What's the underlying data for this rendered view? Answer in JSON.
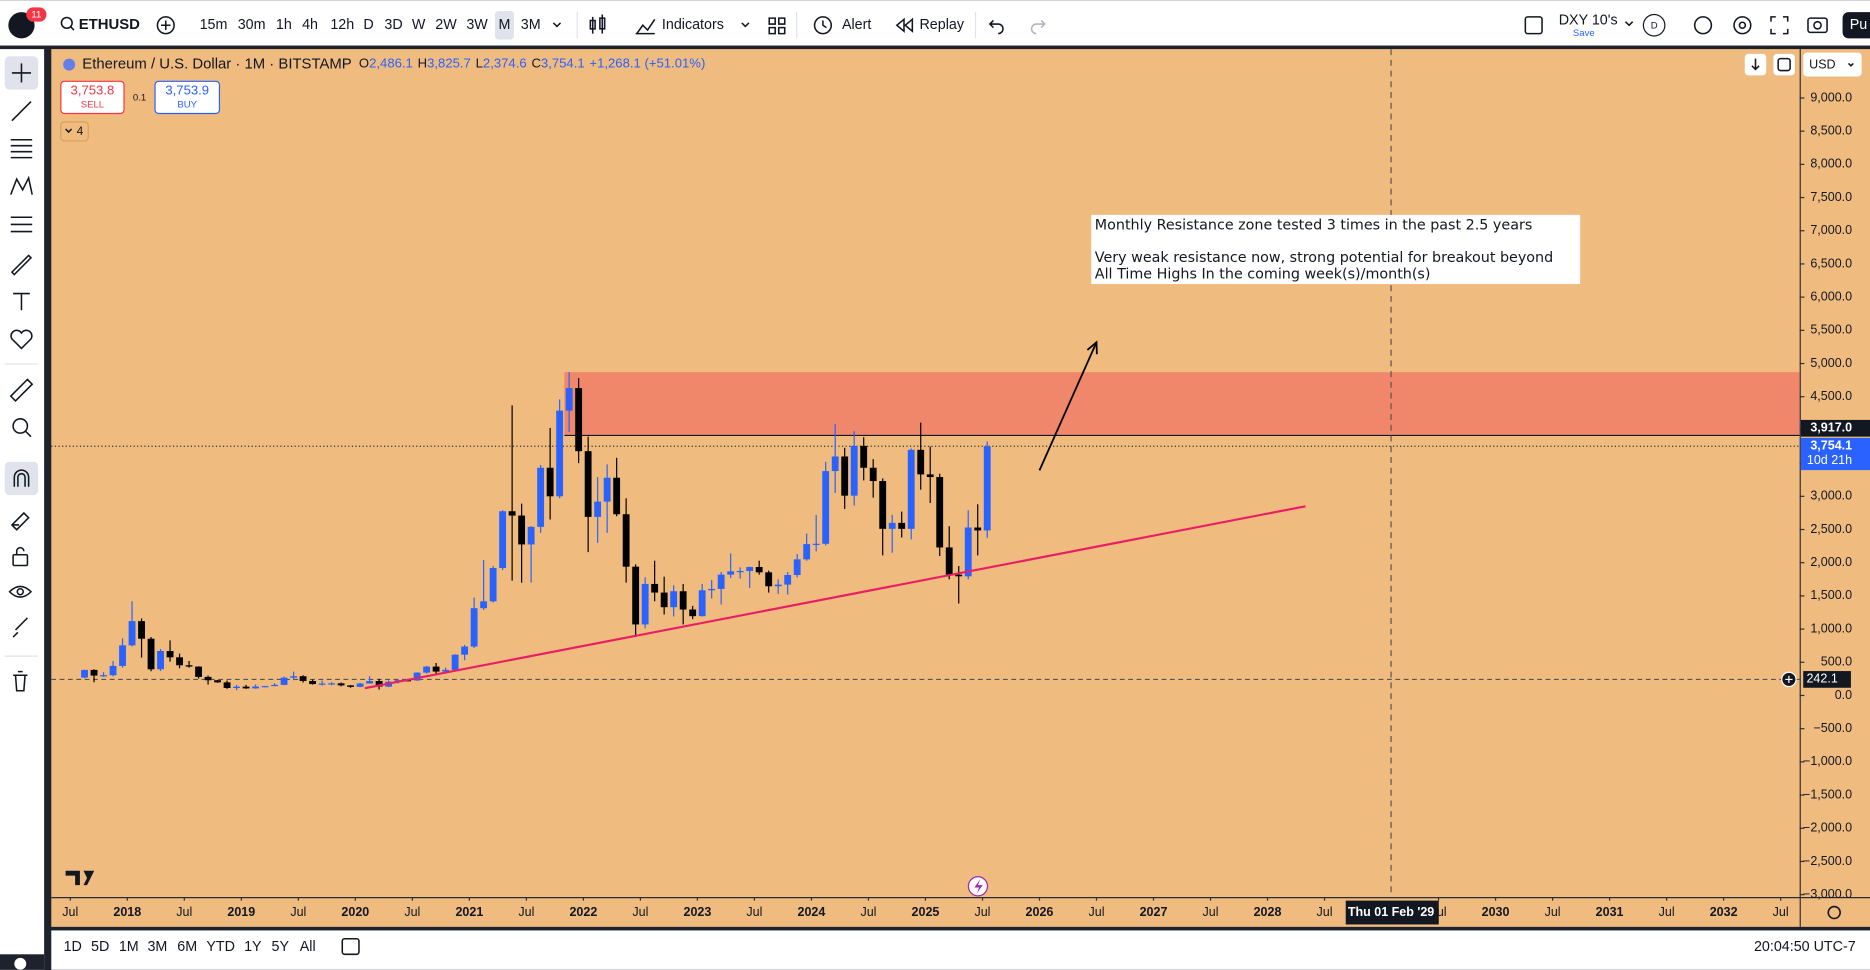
{
  "toolbar": {
    "symbol": "ETHUSD",
    "notifications": "11",
    "intervals": [
      "15m",
      "30m",
      "1h",
      "4h",
      "12h",
      "D",
      "3D",
      "W",
      "2W",
      "3W",
      "M",
      "3M"
    ],
    "active_interval": "M",
    "indicators": "Indicators",
    "alert": "Alert",
    "replay": "Replay",
    "layout_name": "DXY 10's",
    "save": "Save",
    "avatar": "D",
    "publish": "Pu"
  },
  "legend": {
    "title": "Ethereum / U.S. Dollar · 1M · BITSTAMP",
    "ohlc": [
      {
        "key": "O",
        "value": "2,486.1"
      },
      {
        "key": "H",
        "value": "3,825.7"
      },
      {
        "key": "L",
        "value": "2,374.6"
      },
      {
        "key": "C",
        "value": "3,754.1"
      }
    ],
    "change": "+1,268.1 (+51.01%)"
  },
  "trade": {
    "sell_price": "3,753.8",
    "sell": "SELL",
    "spread": "0.1",
    "buy_price": "3,753.9",
    "buy": "BUY"
  },
  "indicators_collapsed": "4",
  "annotation": [
    "Monthly Resistance zone tested 3 times in the past 2.5 years",
    "Very weak resistance now, strong potential for breakout beyond",
    "All Time Highs In the coming week(s)/month(s)"
  ],
  "chart": {
    "type": "candlestick",
    "up_color": "#2962ff",
    "down_color": "#000000",
    "background": "#efbb7f",
    "currency": "USD",
    "xlim": [
      "2017-05",
      "2032-09"
    ],
    "xticks": [
      {
        "value": "2017-07",
        "label": "Jul"
      },
      {
        "value": "2018-01",
        "label": "2018"
      },
      {
        "value": "2018-07",
        "label": "Jul"
      },
      {
        "value": "2019-01",
        "label": "2019"
      },
      {
        "value": "2019-07",
        "label": "Jul"
      },
      {
        "value": "2020-01",
        "label": "2020"
      },
      {
        "value": "2020-07",
        "label": "Jul"
      },
      {
        "value": "2021-01",
        "label": "2021"
      },
      {
        "value": "2021-07",
        "label": "Jul"
      },
      {
        "value": "2022-01",
        "label": "2022"
      },
      {
        "value": "2022-07",
        "label": "Jul"
      },
      {
        "value": "2023-01",
        "label": "2023"
      },
      {
        "value": "2023-07",
        "label": "Jul"
      },
      {
        "value": "2024-01",
        "label": "2024"
      },
      {
        "value": "2024-07",
        "label": "Jul"
      },
      {
        "value": "2025-01",
        "label": "2025"
      },
      {
        "value": "2025-07",
        "label": "Jul"
      },
      {
        "value": "2026-01",
        "label": "2026"
      },
      {
        "value": "2026-07",
        "label": "Jul"
      },
      {
        "value": "2027-01",
        "label": "2027"
      },
      {
        "value": "2027-07",
        "label": "Jul"
      },
      {
        "value": "2028-01",
        "label": "2028"
      },
      {
        "value": "2028-07",
        "label": "Jul"
      },
      {
        "value": "2029-07",
        "label": "Jul"
      },
      {
        "value": "2030-01",
        "label": "2030"
      },
      {
        "value": "2030-07",
        "label": "Jul"
      },
      {
        "value": "2031-01",
        "label": "2031"
      },
      {
        "value": "2031-07",
        "label": "Jul"
      },
      {
        "value": "2032-01",
        "label": "2032"
      },
      {
        "value": "2032-07",
        "label": "Jul"
      }
    ],
    "ylim": [
      -3036,
      9736
    ],
    "yticks": [
      {
        "value": 9000,
        "label": "9,000.0"
      },
      {
        "value": 8500,
        "label": "8,500.0"
      },
      {
        "value": 8000,
        "label": "8,000.0"
      },
      {
        "value": 7500,
        "label": "7,500.0"
      },
      {
        "value": 7000,
        "label": "7,000.0"
      },
      {
        "value": 6500,
        "label": "6,500.0"
      },
      {
        "value": 6000,
        "label": "6,000.0"
      },
      {
        "value": 5500,
        "label": "5,500.0"
      },
      {
        "value": 5000,
        "label": "5,000.0"
      },
      {
        "value": 4500,
        "label": "4,500.0"
      },
      {
        "value": 4000,
        "label": "4,000.0"
      },
      {
        "value": 3500,
        "label": "3,500.0"
      },
      {
        "value": 3000,
        "label": "3,000.0"
      },
      {
        "value": 2500,
        "label": "2,500.0"
      },
      {
        "value": 2000,
        "label": "2,000.0"
      },
      {
        "value": 1500,
        "label": "1,500.0"
      },
      {
        "value": 1000,
        "label": "1,000.0"
      },
      {
        "value": 500,
        "label": "500.0"
      },
      {
        "value": 0,
        "label": "0.0"
      },
      {
        "value": -500,
        "label": "−500.0"
      },
      {
        "value": -1000,
        "label": "−1,000.0"
      },
      {
        "value": -1500,
        "label": "−1,500.0"
      },
      {
        "value": -2000,
        "label": "−2,000.0"
      },
      {
        "value": -2500,
        "label": "−2,500.0"
      },
      {
        "value": -3000,
        "label": "−3,000.0"
      }
    ],
    "candles": [
      {
        "t": "2017-08",
        "o": 270,
        "h": 390,
        "l": 260,
        "c": 385
      },
      {
        "t": "2017-09",
        "o": 385,
        "h": 395,
        "l": 200,
        "c": 300
      },
      {
        "t": "2017-10",
        "o": 300,
        "h": 350,
        "l": 280,
        "c": 305
      },
      {
        "t": "2017-11",
        "o": 305,
        "h": 520,
        "l": 290,
        "c": 445
      },
      {
        "t": "2017-12",
        "o": 445,
        "h": 860,
        "l": 420,
        "c": 755
      },
      {
        "t": "2018-01",
        "o": 755,
        "h": 1420,
        "l": 740,
        "c": 1120
      },
      {
        "t": "2018-02",
        "o": 1120,
        "h": 1160,
        "l": 570,
        "c": 855
      },
      {
        "t": "2018-03",
        "o": 855,
        "h": 880,
        "l": 365,
        "c": 395
      },
      {
        "t": "2018-04",
        "o": 395,
        "h": 700,
        "l": 370,
        "c": 670
      },
      {
        "t": "2018-05",
        "o": 670,
        "h": 830,
        "l": 510,
        "c": 575
      },
      {
        "t": "2018-06",
        "o": 575,
        "h": 630,
        "l": 410,
        "c": 455
      },
      {
        "t": "2018-07",
        "o": 455,
        "h": 520,
        "l": 420,
        "c": 435
      },
      {
        "t": "2018-08",
        "o": 435,
        "h": 440,
        "l": 255,
        "c": 280
      },
      {
        "t": "2018-09",
        "o": 280,
        "h": 300,
        "l": 165,
        "c": 230
      },
      {
        "t": "2018-10",
        "o": 230,
        "h": 235,
        "l": 190,
        "c": 198
      },
      {
        "t": "2018-11",
        "o": 198,
        "h": 225,
        "l": 100,
        "c": 113
      },
      {
        "t": "2018-12",
        "o": 113,
        "h": 160,
        "l": 82,
        "c": 133
      },
      {
        "t": "2019-01",
        "o": 133,
        "h": 160,
        "l": 100,
        "c": 107
      },
      {
        "t": "2019-02",
        "o": 107,
        "h": 165,
        "l": 102,
        "c": 135
      },
      {
        "t": "2019-03",
        "o": 135,
        "h": 145,
        "l": 125,
        "c": 141
      },
      {
        "t": "2019-04",
        "o": 141,
        "h": 185,
        "l": 140,
        "c": 160
      },
      {
        "t": "2019-05",
        "o": 160,
        "h": 285,
        "l": 155,
        "c": 268
      },
      {
        "t": "2019-06",
        "o": 268,
        "h": 360,
        "l": 230,
        "c": 290
      },
      {
        "t": "2019-07",
        "o": 290,
        "h": 305,
        "l": 195,
        "c": 218
      },
      {
        "t": "2019-08",
        "o": 218,
        "h": 240,
        "l": 165,
        "c": 172
      },
      {
        "t": "2019-09",
        "o": 172,
        "h": 225,
        "l": 150,
        "c": 180
      },
      {
        "t": "2019-10",
        "o": 180,
        "h": 200,
        "l": 155,
        "c": 183
      },
      {
        "t": "2019-11",
        "o": 183,
        "h": 195,
        "l": 137,
        "c": 152
      },
      {
        "t": "2019-12",
        "o": 152,
        "h": 155,
        "l": 117,
        "c": 130
      },
      {
        "t": "2020-01",
        "o": 130,
        "h": 190,
        "l": 125,
        "c": 180
      },
      {
        "t": "2020-02",
        "o": 180,
        "h": 290,
        "l": 180,
        "c": 218
      },
      {
        "t": "2020-03",
        "o": 218,
        "h": 250,
        "l": 90,
        "c": 133
      },
      {
        "t": "2020-04",
        "o": 133,
        "h": 227,
        "l": 126,
        "c": 207
      },
      {
        "t": "2020-05",
        "o": 207,
        "h": 245,
        "l": 180,
        "c": 231
      },
      {
        "t": "2020-06",
        "o": 231,
        "h": 250,
        "l": 215,
        "c": 226
      },
      {
        "t": "2020-07",
        "o": 226,
        "h": 350,
        "l": 220,
        "c": 345
      },
      {
        "t": "2020-08",
        "o": 345,
        "h": 445,
        "l": 330,
        "c": 435
      },
      {
        "t": "2020-09",
        "o": 435,
        "h": 490,
        "l": 310,
        "c": 360
      },
      {
        "t": "2020-10",
        "o": 360,
        "h": 420,
        "l": 330,
        "c": 386
      },
      {
        "t": "2020-11",
        "o": 386,
        "h": 620,
        "l": 380,
        "c": 615
      },
      {
        "t": "2020-12",
        "o": 615,
        "h": 760,
        "l": 530,
        "c": 737
      },
      {
        "t": "2021-01",
        "o": 737,
        "h": 1475,
        "l": 715,
        "c": 1315
      },
      {
        "t": "2021-02",
        "o": 1315,
        "h": 2040,
        "l": 1290,
        "c": 1418
      },
      {
        "t": "2021-03",
        "o": 1418,
        "h": 1950,
        "l": 1400,
        "c": 1920
      },
      {
        "t": "2021-04",
        "o": 1920,
        "h": 2790,
        "l": 1890,
        "c": 2775
      },
      {
        "t": "2021-05",
        "o": 2775,
        "h": 4370,
        "l": 1730,
        "c": 2710
      },
      {
        "t": "2021-06",
        "o": 2710,
        "h": 2890,
        "l": 1700,
        "c": 2275
      },
      {
        "t": "2021-07",
        "o": 2275,
        "h": 2550,
        "l": 1700,
        "c": 2540
      },
      {
        "t": "2021-08",
        "o": 2540,
        "h": 3470,
        "l": 2450,
        "c": 3430
      },
      {
        "t": "2021-09",
        "o": 3430,
        "h": 4030,
        "l": 2650,
        "c": 3000
      },
      {
        "t": "2021-10",
        "o": 3000,
        "h": 4460,
        "l": 2970,
        "c": 4290
      },
      {
        "t": "2021-11",
        "o": 4290,
        "h": 4870,
        "l": 3970,
        "c": 4630
      },
      {
        "t": "2021-12",
        "o": 4630,
        "h": 4780,
        "l": 3500,
        "c": 3680
      },
      {
        "t": "2022-01",
        "o": 3680,
        "h": 3900,
        "l": 2160,
        "c": 2690
      },
      {
        "t": "2022-02",
        "o": 2690,
        "h": 3290,
        "l": 2300,
        "c": 2920
      },
      {
        "t": "2022-03",
        "o": 2920,
        "h": 3480,
        "l": 2450,
        "c": 3280
      },
      {
        "t": "2022-04",
        "o": 3280,
        "h": 3580,
        "l": 2700,
        "c": 2730
      },
      {
        "t": "2022-05",
        "o": 2730,
        "h": 2970,
        "l": 1700,
        "c": 1940
      },
      {
        "t": "2022-06",
        "o": 1940,
        "h": 1975,
        "l": 880,
        "c": 1070
      },
      {
        "t": "2022-07",
        "o": 1070,
        "h": 1780,
        "l": 1010,
        "c": 1680
      },
      {
        "t": "2022-08",
        "o": 1680,
        "h": 2030,
        "l": 1420,
        "c": 1550
      },
      {
        "t": "2022-09",
        "o": 1550,
        "h": 1790,
        "l": 1220,
        "c": 1330
      },
      {
        "t": "2022-10",
        "o": 1330,
        "h": 1660,
        "l": 1190,
        "c": 1570
      },
      {
        "t": "2022-11",
        "o": 1570,
        "h": 1680,
        "l": 1070,
        "c": 1295
      },
      {
        "t": "2022-12",
        "o": 1295,
        "h": 1350,
        "l": 1150,
        "c": 1195
      },
      {
        "t": "2023-01",
        "o": 1195,
        "h": 1680,
        "l": 1190,
        "c": 1585
      },
      {
        "t": "2023-02",
        "o": 1585,
        "h": 1740,
        "l": 1460,
        "c": 1605
      },
      {
        "t": "2023-03",
        "o": 1605,
        "h": 1860,
        "l": 1370,
        "c": 1820
      },
      {
        "t": "2023-04",
        "o": 1820,
        "h": 2140,
        "l": 1770,
        "c": 1870
      },
      {
        "t": "2023-05",
        "o": 1870,
        "h": 1930,
        "l": 1760,
        "c": 1875
      },
      {
        "t": "2023-06",
        "o": 1875,
        "h": 1940,
        "l": 1620,
        "c": 1935
      },
      {
        "t": "2023-07",
        "o": 1935,
        "h": 2030,
        "l": 1820,
        "c": 1855
      },
      {
        "t": "2023-08",
        "o": 1855,
        "h": 1880,
        "l": 1550,
        "c": 1645
      },
      {
        "t": "2023-09",
        "o": 1645,
        "h": 1750,
        "l": 1530,
        "c": 1670
      },
      {
        "t": "2023-10",
        "o": 1670,
        "h": 1860,
        "l": 1520,
        "c": 1815
      },
      {
        "t": "2023-11",
        "o": 1815,
        "h": 2130,
        "l": 1780,
        "c": 2050
      },
      {
        "t": "2023-12",
        "o": 2050,
        "h": 2440,
        "l": 2030,
        "c": 2280
      },
      {
        "t": "2024-01",
        "o": 2280,
        "h": 2720,
        "l": 2170,
        "c": 2285
      },
      {
        "t": "2024-02",
        "o": 2285,
        "h": 3520,
        "l": 2260,
        "c": 3380
      },
      {
        "t": "2024-03",
        "o": 3380,
        "h": 4090,
        "l": 3050,
        "c": 3600
      },
      {
        "t": "2024-04",
        "o": 3600,
        "h": 3730,
        "l": 2810,
        "c": 3010
      },
      {
        "t": "2024-05",
        "o": 3010,
        "h": 3980,
        "l": 2860,
        "c": 3760
      },
      {
        "t": "2024-06",
        "o": 3760,
        "h": 3890,
        "l": 3240,
        "c": 3430
      },
      {
        "t": "2024-07",
        "o": 3430,
        "h": 3560,
        "l": 2980,
        "c": 3230
      },
      {
        "t": "2024-08",
        "o": 3230,
        "h": 3270,
        "l": 2110,
        "c": 2510
      },
      {
        "t": "2024-09",
        "o": 2510,
        "h": 2720,
        "l": 2150,
        "c": 2600
      },
      {
        "t": "2024-10",
        "o": 2600,
        "h": 2770,
        "l": 2380,
        "c": 2510
      },
      {
        "t": "2024-11",
        "o": 2510,
        "h": 3720,
        "l": 2350,
        "c": 3700
      },
      {
        "t": "2024-12",
        "o": 3700,
        "h": 4110,
        "l": 3100,
        "c": 3330
      },
      {
        "t": "2025-01",
        "o": 3330,
        "h": 3750,
        "l": 2900,
        "c": 3290
      },
      {
        "t": "2025-02",
        "o": 3290,
        "h": 3340,
        "l": 2100,
        "c": 2230
      },
      {
        "t": "2025-03",
        "o": 2230,
        "h": 2550,
        "l": 1750,
        "c": 1820
      },
      {
        "t": "2025-04",
        "o": 1820,
        "h": 1950,
        "l": 1385,
        "c": 1795
      },
      {
        "t": "2025-05",
        "o": 1795,
        "h": 2790,
        "l": 1750,
        "c": 2530
      },
      {
        "t": "2025-06",
        "o": 2530,
        "h": 2880,
        "l": 2110,
        "c": 2486.1
      },
      {
        "t": "2025-07",
        "o": 2486.1,
        "h": 3825.7,
        "l": 2374.6,
        "c": 3754.1
      }
    ],
    "last_price": {
      "value": 3754.1,
      "label": "3,754.1"
    },
    "countdown": "10d 21h",
    "zone": {
      "from": "2021-11",
      "bottom": {
        "value": 3917,
        "label": "3,917.0"
      },
      "top": 4870,
      "color": "#f0866a"
    },
    "trendline": {
      "from": {
        "t": "2020-02",
        "price": 110
      },
      "to": {
        "t": "2028-05",
        "price": 2850
      },
      "color": "#e91e63"
    },
    "arrow": {
      "from": {
        "t": "2026-01",
        "price": 3390
      },
      "to": {
        "t": "2026-07",
        "price": 5320
      }
    },
    "horizontal_line": {
      "value": 242.1,
      "label": "242.1"
    },
    "crosshair": {
      "t": "2029-02",
      "label": "Thu 01 Feb '29"
    }
  },
  "ranges": [
    "1D",
    "5D",
    "1M",
    "3M",
    "6M",
    "YTD",
    "1Y",
    "5Y",
    "All"
  ],
  "clock": "20:04:50 UTC-7"
}
